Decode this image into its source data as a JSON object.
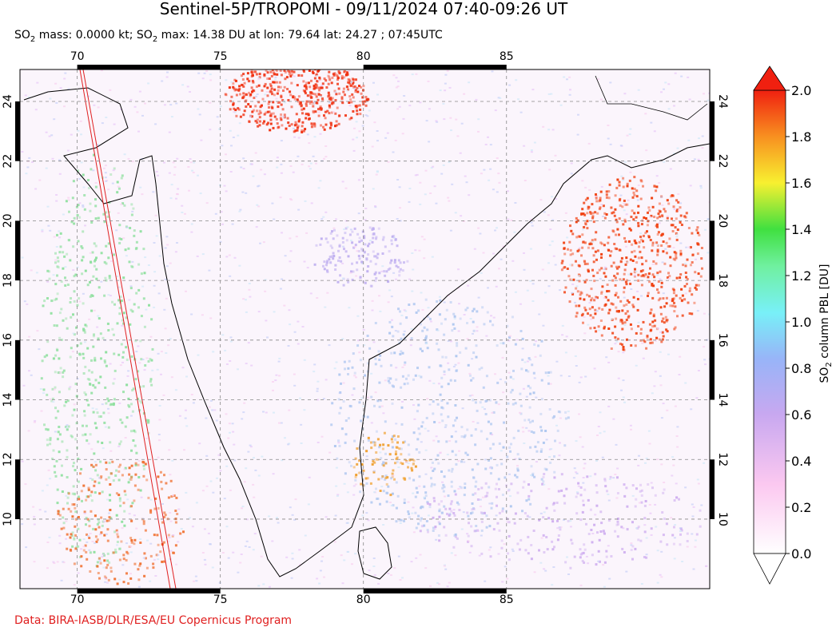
{
  "title": "Sentinel-5P/TROPOMI - 09/11/2024 07:40-09:26 UT",
  "subtitle": [
    "SO",
    "2",
    " mass: 0.0000 kt; SO",
    "2",
    " max: 14.38 DU at lon: 79.64 lat: 24.27 ; 07:45UTC"
  ],
  "map": {
    "xlim": [
      68,
      92.1
    ],
    "ylim": [
      7.67,
      25.07
    ],
    "xticks": [
      70,
      75,
      80,
      85
    ],
    "yticks": [
      10,
      12,
      14,
      16,
      18,
      20,
      22,
      24
    ]
  },
  "colorbar": {
    "label": [
      "SO",
      "2",
      " column PBL [DU]"
    ],
    "lim": [
      0,
      2
    ],
    "ticks": [
      {
        "value": 0,
        "label": "0.0"
      },
      {
        "value": 0.2,
        "label": "0.2"
      },
      {
        "value": 0.4,
        "label": "0.4"
      },
      {
        "value": 0.6,
        "label": "0.6"
      },
      {
        "value": 0.8,
        "label": "0.8"
      },
      {
        "value": 1,
        "label": "1.0"
      },
      {
        "value": 1.2,
        "label": "1.2"
      },
      {
        "value": 1.4,
        "label": "1.4"
      },
      {
        "value": 1.6,
        "label": "1.6"
      },
      {
        "value": 1.8,
        "label": "1.8"
      },
      {
        "value": 2,
        "label": "2.0"
      }
    ]
  },
  "credit": "Data: BIRA-IASB/DLR/ESA/EU Copernicus Program"
}
